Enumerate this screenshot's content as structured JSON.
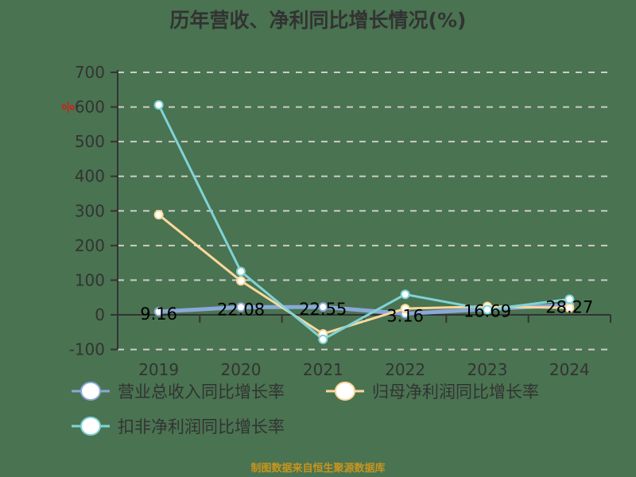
{
  "title": "历年营收、净利同比增长情况(%)",
  "source": "制图数据来自恒生聚源数据库",
  "unit_marker": "%",
  "colors": {
    "background": "#4a7351",
    "revenue": "#8aa8d8",
    "net_profit": "#fcd89a",
    "deducted_net_profit": "#7fd3d7",
    "axis": "#333333",
    "grid": "#cccccc",
    "unit_marker": "#ff0000",
    "source": "#c8951e"
  },
  "chart_data": {
    "type": "line",
    "title": "历年营收、净利同比增长情况(%)",
    "xlabel": "",
    "ylabel": "%",
    "categories": [
      "2019",
      "2020",
      "2021",
      "2022",
      "2023",
      "2024"
    ],
    "ylim": [
      -100,
      700
    ],
    "yticks": [
      -100,
      0,
      100,
      200,
      300,
      400,
      500,
      600,
      700
    ],
    "grid": true,
    "legend_position": "bottom",
    "series": [
      {
        "name": "营业总收入同比增长率",
        "values": [
          9.16,
          22.08,
          22.55,
          3.16,
          16.69,
          28.27
        ],
        "labels": [
          "9.16",
          "22.08",
          "22.55",
          "3.16",
          "16.69",
          "28.27"
        ],
        "color": "#8aa8d8"
      },
      {
        "name": "归母净利润同比增长率",
        "values": [
          289,
          98,
          -55,
          18,
          24,
          20
        ],
        "color": "#fcd89a"
      },
      {
        "name": "扣非净利润同比增长率",
        "values": [
          606,
          125,
          -71,
          59,
          15,
          45
        ],
        "color": "#7fd3d7"
      }
    ]
  }
}
